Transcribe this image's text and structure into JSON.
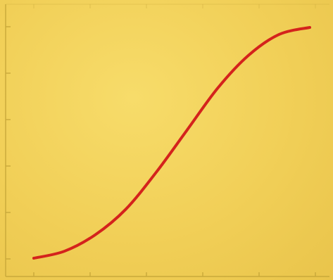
{
  "chart_data": {
    "type": "line",
    "title": "",
    "xlabel": "",
    "ylabel": "",
    "grid": false,
    "legend": "none",
    "colors": {
      "background": "#f3d35e",
      "axis": "#c9a93a",
      "line": "#d4231c"
    },
    "xlim": [
      0,
      5
    ],
    "ylim": [
      0,
      5
    ],
    "series": [
      {
        "x": [
          0.33,
          0.83,
          1.33,
          1.83,
          2.33,
          2.83,
          3.33,
          3.83,
          4.33,
          4.83
        ],
        "y": [
          0.05,
          0.2,
          0.55,
          1.1,
          1.9,
          2.8,
          3.7,
          4.4,
          4.85,
          5.0
        ]
      }
    ]
  }
}
